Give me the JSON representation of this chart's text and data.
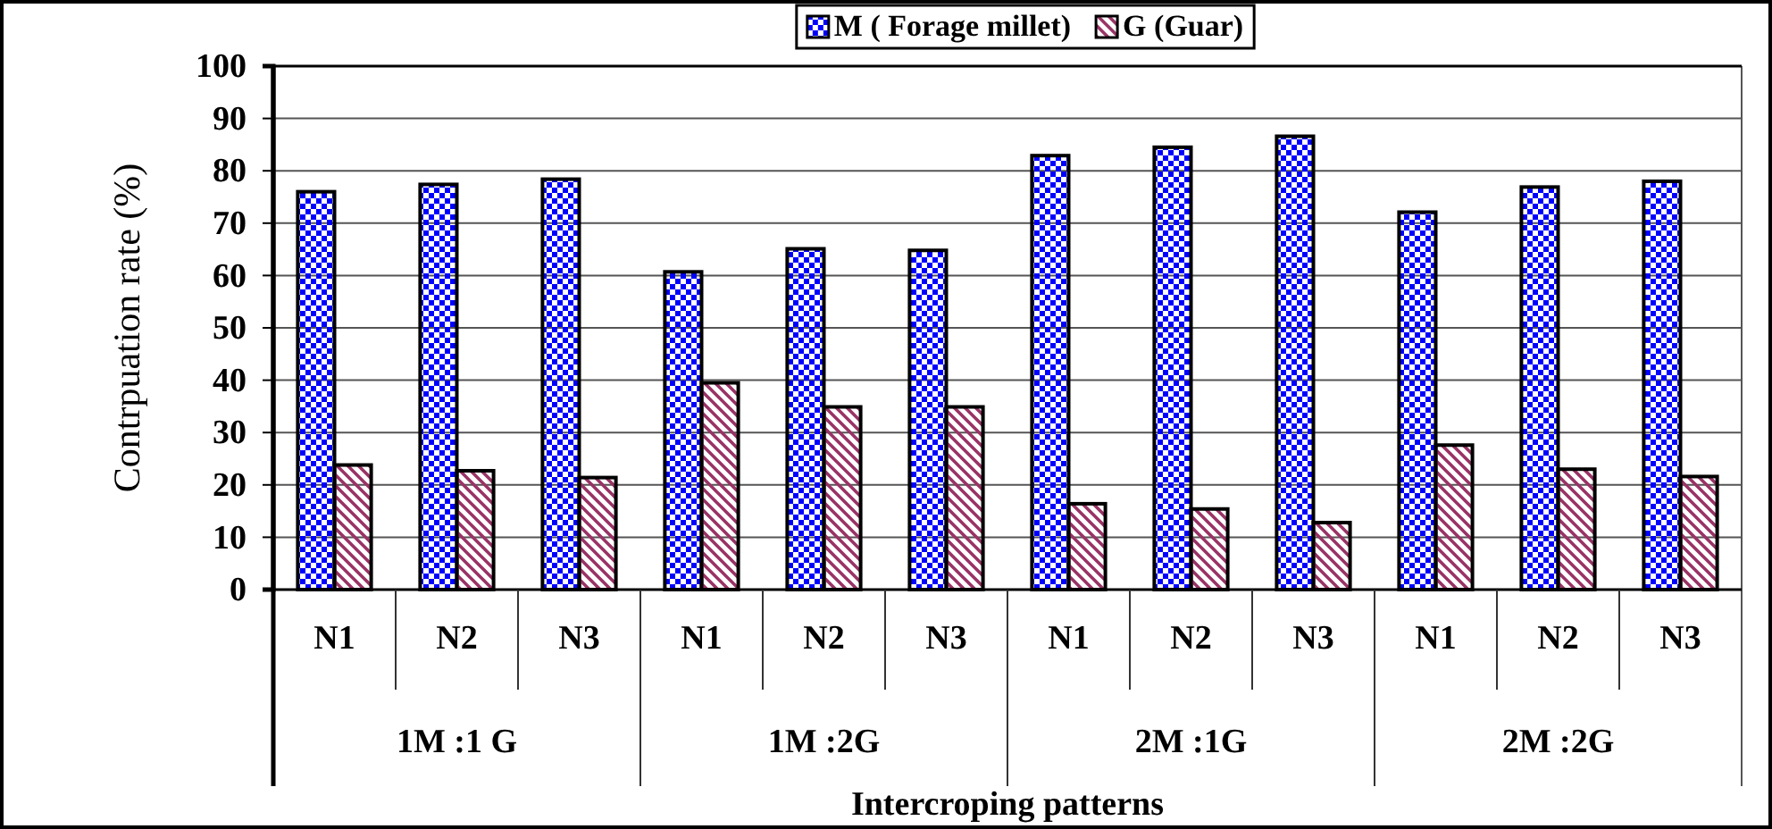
{
  "chart_data": {
    "type": "bar",
    "xlabel": "Intercroping patterns",
    "ylabel": "Contrpuation rate (%)",
    "categories": [
      "N1",
      "N2",
      "N3",
      "N1",
      "N2",
      "N3",
      "N1",
      "N2",
      "N3",
      "N1",
      "N2",
      "N3"
    ],
    "series": [
      {
        "name": "M ( Forage millet)",
        "color": "#0000ff",
        "values": [
          76,
          77.4,
          78.4,
          60.7,
          65.1,
          64.8,
          82.9,
          84.5,
          86.6,
          72.1,
          76.9,
          78
        ]
      },
      {
        "name": "G (Guar)",
        "color": "#993366",
        "values": [
          23.8,
          22.7,
          21.4,
          39.5,
          34.9,
          34.9,
          16.4,
          15.4,
          12.8,
          27.6,
          23,
          21.6
        ]
      }
    ],
    "annotations": [
      "1M :1 G",
      "1M :2G",
      "2M :1G",
      "2M :2G"
    ],
    "ylim": [
      0,
      100
    ],
    "yticks": [
      0,
      10,
      20,
      30,
      40,
      50,
      60,
      70,
      80,
      90,
      100
    ],
    "grid": "y",
    "legend": "top"
  }
}
